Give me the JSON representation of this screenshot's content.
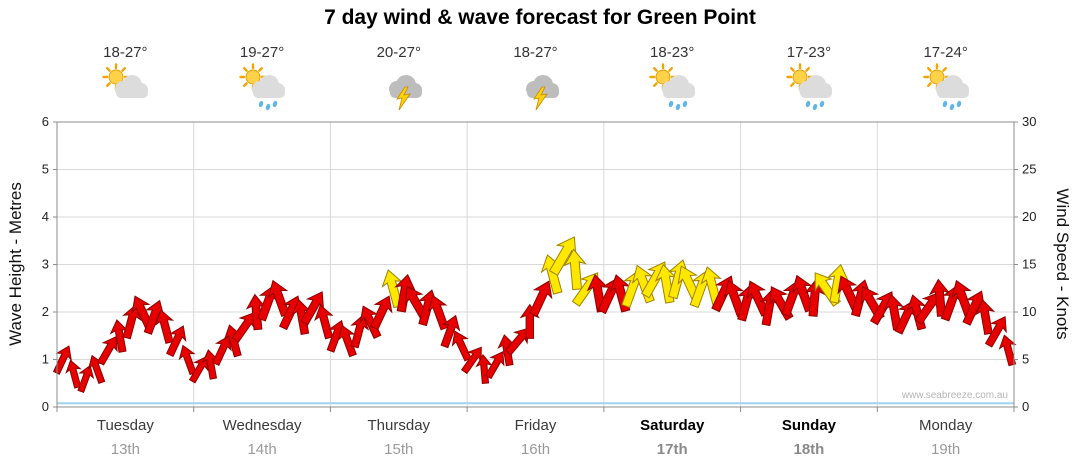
{
  "title": "7 day wind & wave forecast for Green Point",
  "watermark": "www.seabreeze.com.au",
  "axes": {
    "left_label": "Wave Height - Metres",
    "right_label": "Wind Speed - Knots"
  },
  "chart_data": {
    "type": "scatter",
    "title": "7 day wind & wave forecast for Green Point",
    "ylabel_left": "Wave Height - Metres",
    "ylabel_right": "Wind Speed - Knots",
    "ylim_left": [
      0,
      6
    ],
    "ylim_right": [
      0,
      30
    ],
    "yticks_left": [
      0,
      1,
      2,
      3,
      4,
      5,
      6
    ],
    "yticks_right": [
      0,
      5,
      10,
      15,
      20,
      25,
      30
    ],
    "grid": true,
    "days": [
      {
        "name": "Tuesday",
        "date": "13th",
        "temp_range": "18-27°",
        "icon": "partly-cloudy",
        "weekend": false
      },
      {
        "name": "Wednesday",
        "date": "14th",
        "temp_range": "19-27°",
        "icon": "sun-shower",
        "weekend": false
      },
      {
        "name": "Thursday",
        "date": "15th",
        "temp_range": "20-27°",
        "icon": "storm",
        "weekend": false
      },
      {
        "name": "Friday",
        "date": "16th",
        "temp_range": "18-27°",
        "icon": "storm",
        "weekend": false
      },
      {
        "name": "Saturday",
        "date": "17th",
        "temp_range": "18-23°",
        "icon": "sun-shower",
        "weekend": true
      },
      {
        "name": "Sunday",
        "date": "18th",
        "temp_range": "17-23°",
        "icon": "sun-shower",
        "weekend": true
      },
      {
        "name": "Monday",
        "date": "19th",
        "temp_range": "17-24°",
        "icon": "sun-shower",
        "weekend": false
      }
    ],
    "wind_series": {
      "points_per_day": 12,
      "strong_threshold_knots": 12.3,
      "colors": {
        "normal": "#e60000",
        "normal_stroke": "#8f0000",
        "strong": "#ffe800",
        "strong_stroke": "#a08000"
      },
      "knots": [
        5,
        3.5,
        3,
        4,
        6,
        7.5,
        9,
        10,
        9.5,
        8.5,
        7,
        5,
        4,
        4.5,
        6,
        7,
        8.5,
        10,
        11,
        11.5,
        10,
        9.5,
        10.5,
        9,
        7.5,
        7,
        8,
        9,
        10,
        12.5,
        12,
        11,
        10.5,
        10,
        8,
        6.5,
        5,
        4,
        4.5,
        6,
        7,
        9,
        11.5,
        14,
        16,
        14.5,
        12.5,
        12,
        11.8,
        12,
        12.5,
        13,
        13.5,
        13,
        13.5,
        13,
        12.5,
        12.8,
        12,
        11.5,
        11,
        11.5,
        10.5,
        11,
        11.5,
        12,
        11.5,
        12.5,
        13,
        12,
        11.5,
        11,
        10.5,
        10,
        9.5,
        10,
        10.5,
        11.5,
        11,
        11.5,
        10.5,
        9.5,
        8,
        6
      ],
      "directions_deg": [
        25,
        -15,
        20,
        -20,
        30,
        -10,
        15,
        -25,
        20,
        -15,
        25,
        -20,
        30,
        -10,
        25,
        -15,
        35,
        -5,
        20,
        -20,
        25,
        -10,
        30,
        -15,
        20,
        -20,
        15,
        -25,
        25,
        -15,
        10,
        -30,
        15,
        -20,
        20,
        -25,
        35,
        -5,
        30,
        -10,
        40,
        0,
        25,
        -15,
        30,
        -5,
        35,
        -10,
        25,
        -15,
        20,
        -20,
        30,
        -10,
        15,
        -25,
        20,
        -15,
        25,
        -20,
        15,
        -25,
        10,
        -30,
        20,
        -20,
        5,
        -35,
        10,
        -25,
        15,
        -30,
        30,
        -10,
        25,
        -15,
        35,
        -5,
        20,
        -20,
        25,
        -10,
        30,
        -15
      ]
    },
    "wave_series": {
      "metres_flat": 0.08,
      "color": "#9fd4ef"
    }
  }
}
